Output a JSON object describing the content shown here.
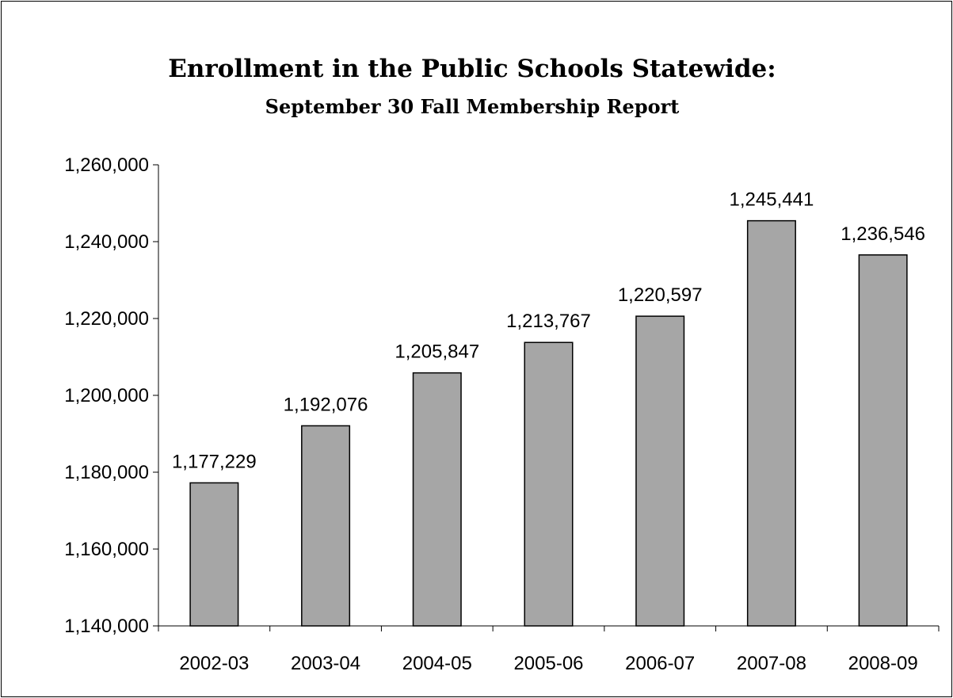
{
  "chart_data": {
    "type": "bar",
    "title": "Enrollment in the Public Schools Statewide:",
    "subtitle": "September 30 Fall Membership Report",
    "xlabel": "",
    "ylabel": "",
    "categories": [
      "2002-03",
      "2003-04",
      "2004-05",
      "2005-06",
      "2006-07",
      "2007-08",
      "2008-09"
    ],
    "values": [
      1177229,
      1192076,
      1205847,
      1213767,
      1220597,
      1245441,
      1236546
    ],
    "data_labels": [
      "1,177,229",
      "1,192,076",
      "1,205,847",
      "1,213,767",
      "1,220,597",
      "1,245,441",
      "1,236,546"
    ],
    "ylim": [
      1140000,
      1260000
    ],
    "yticks": [
      1140000,
      1160000,
      1180000,
      1200000,
      1220000,
      1240000,
      1260000
    ],
    "ytick_labels": [
      "1,140,000",
      "1,160,000",
      "1,180,000",
      "1,200,000",
      "1,220,000",
      "1,240,000",
      "1,260,000"
    ],
    "grid": false,
    "legend": "none",
    "colors": {
      "bar_fill": "#a6a6a6",
      "bar_stroke": "#000000",
      "axis": "#000000",
      "text": "#000000"
    }
  }
}
